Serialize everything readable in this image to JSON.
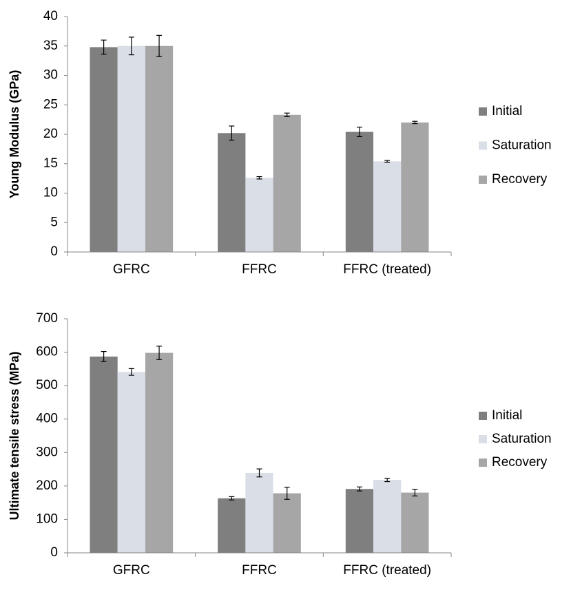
{
  "chart_data": [
    {
      "type": "bar",
      "y_label": "Young Modulus (GPa)",
      "categories": [
        "GFRC",
        "FFRC",
        "FFRC (treated)"
      ],
      "series": [
        {
          "name": "Initial",
          "color": "#7f7f7f",
          "values": [
            34.8,
            20.2,
            20.4
          ],
          "errors": [
            1.2,
            1.2,
            0.8
          ]
        },
        {
          "name": "Saturation",
          "color": "#d9dee7",
          "values": [
            35.0,
            12.6,
            15.4
          ],
          "errors": [
            1.5,
            0.2,
            0.15
          ]
        },
        {
          "name": "Recovery",
          "color": "#a6a6a6",
          "values": [
            35.0,
            23.3,
            22.0
          ],
          "errors": [
            1.8,
            0.3,
            0.2
          ]
        }
      ],
      "ylim": [
        0,
        40
      ],
      "yticks": [
        0,
        5,
        10,
        15,
        20,
        25,
        30,
        35,
        40
      ],
      "grid": false,
      "legend": "right"
    },
    {
      "type": "bar",
      "y_label": "Ultimate tensile stress (MPa)",
      "categories": [
        "GFRC",
        "FFRC",
        "FFRC (treated)"
      ],
      "series": [
        {
          "name": "Initial",
          "color": "#7f7f7f",
          "values": [
            587,
            163,
            191
          ],
          "errors": [
            15,
            5,
            6
          ]
        },
        {
          "name": "Saturation",
          "color": "#d9dee7",
          "values": [
            541,
            239,
            218
          ],
          "errors": [
            10,
            12,
            5
          ]
        },
        {
          "name": "Recovery",
          "color": "#a6a6a6",
          "values": [
            598,
            178,
            180
          ],
          "errors": [
            20,
            18,
            10
          ]
        }
      ],
      "ylim": [
        0,
        700
      ],
      "yticks": [
        0,
        100,
        200,
        300,
        400,
        500,
        600,
        700
      ],
      "grid": false,
      "legend": "right"
    }
  ]
}
